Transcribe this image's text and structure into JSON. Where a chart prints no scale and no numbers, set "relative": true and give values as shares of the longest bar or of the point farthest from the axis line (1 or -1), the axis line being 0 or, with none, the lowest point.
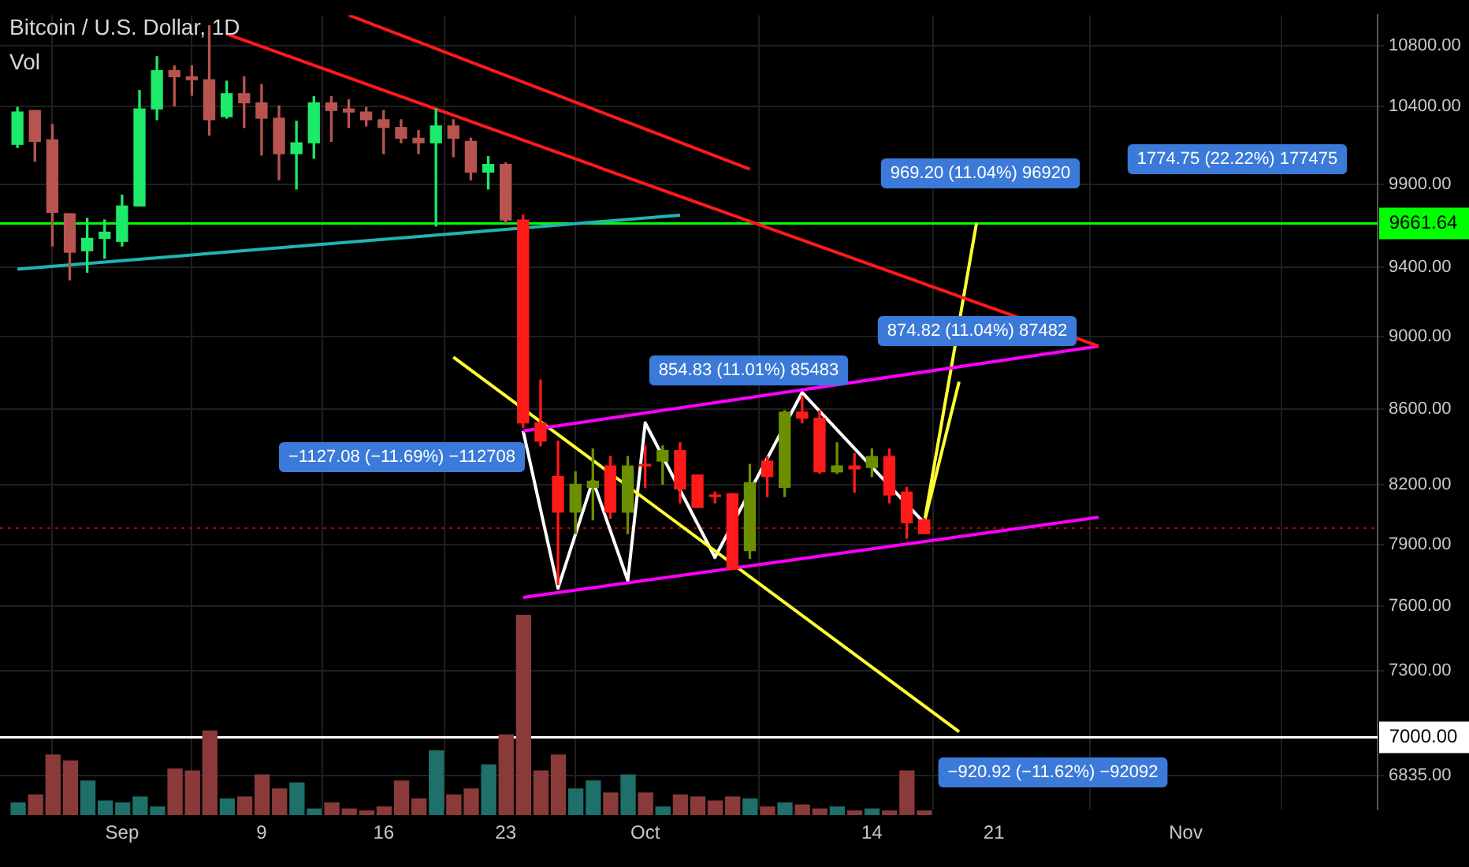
{
  "chart_data": [
    {
      "type": "candlestick",
      "title": "Bitcoin / U.S. Dollar, 1D",
      "subtitle": "Vol",
      "x": [
        "--08-26",
        "--08-27",
        "--08-28",
        "--08-29",
        "--08-30",
        "--08-31",
        "--09-01",
        "--09-02",
        "--09-03",
        "--09-04",
        "--09-05",
        "--09-06",
        "--09-07",
        "--09-08",
        "--09-09",
        "--09-10",
        "--09-11",
        "--09-12",
        "--09-13",
        "--09-14",
        "--09-15",
        "--09-16",
        "--09-17",
        "--09-18",
        "--09-19",
        "--09-20",
        "--09-21",
        "--09-22",
        "--09-23",
        "--09-24",
        "--09-25",
        "--09-26",
        "--09-27",
        "--09-28",
        "--09-29",
        "--09-30",
        "--10-01",
        "--10-02",
        "--10-03",
        "--10-04",
        "--10-05",
        "--10-06",
        "--10-07",
        "--10-08",
        "--10-09",
        "--10-10",
        "--10-11",
        "--10-12",
        "--10-13",
        "--10-14",
        "--10-15",
        "--10-16",
        "--10-17"
      ],
      "ohlc": [
        [
          10153,
          10391,
          10133,
          10361
        ],
        [
          10371,
          10371,
          10046,
          10172
        ],
        [
          10182,
          10281,
          9526,
          9730
        ],
        [
          9721,
          9721,
          9326,
          9489
        ],
        [
          9498,
          9693,
          9371,
          9572
        ],
        [
          9572,
          9683,
          9453,
          9609
        ],
        [
          9554,
          9835,
          9526,
          9768
        ],
        [
          9768,
          10502,
          9768,
          10381
        ],
        [
          10381,
          10727,
          10311,
          10634
        ],
        [
          10634,
          10665,
          10401,
          10593
        ],
        [
          10593,
          10665,
          10471,
          10573
        ],
        [
          10573,
          10937,
          10212,
          10311
        ],
        [
          10331,
          10563,
          10321,
          10481
        ],
        [
          10481,
          10593,
          10261,
          10421
        ],
        [
          10421,
          10542,
          10085,
          10321
        ],
        [
          10321,
          10401,
          9930,
          10094
        ],
        [
          10094,
          10301,
          9873,
          10163
        ],
        [
          10163,
          10461,
          10065,
          10421
        ],
        [
          10421,
          10461,
          10172,
          10371
        ],
        [
          10381,
          10441,
          10261,
          10361
        ],
        [
          10361,
          10391,
          10271,
          10311
        ],
        [
          10311,
          10371,
          10094,
          10261
        ],
        [
          10261,
          10311,
          10163,
          10192
        ],
        [
          10192,
          10241,
          10094,
          10163
        ],
        [
          10163,
          10381,
          9646,
          10271
        ],
        [
          10271,
          10311,
          10075,
          10192
        ],
        [
          10172,
          10192,
          9930,
          9978
        ],
        [
          9978,
          10075,
          9873,
          10026
        ],
        [
          10026,
          10036,
          9665,
          9683
        ],
        [
          9683,
          9712,
          8502,
          8526
        ],
        [
          8526,
          8758,
          8404,
          8429
        ],
        [
          8244,
          8429,
          7704,
          8062
        ],
        [
          8062,
          8268,
          7954,
          8204
        ],
        [
          8188,
          8388,
          8023,
          8220
        ],
        [
          8299,
          8348,
          8031,
          8062
        ],
        [
          8062,
          8348,
          7954,
          8299
        ],
        [
          8307,
          8404,
          8188,
          8299
        ],
        [
          8324,
          8404,
          8204,
          8380
        ],
        [
          8380,
          8420,
          8109,
          8180
        ],
        [
          8252,
          8252,
          8086,
          8086
        ],
        [
          8149,
          8164,
          8109,
          8141
        ],
        [
          8156,
          8156,
          7779,
          7779
        ],
        [
          7870,
          8307,
          7832,
          8212
        ],
        [
          8324,
          8348,
          8141,
          8244
        ],
        [
          8188,
          8592,
          8141,
          8584
        ],
        [
          8584,
          8672,
          8526,
          8551
        ],
        [
          8551,
          8592,
          8260,
          8268
        ],
        [
          8268,
          8420,
          8260,
          8299
        ],
        [
          8299,
          8364,
          8164,
          8283
        ],
        [
          8291,
          8388,
          8244,
          8348
        ],
        [
          8348,
          8388,
          8109,
          8149
        ],
        [
          8164,
          8188,
          7931,
          8008
        ],
        [
          8023,
          8031,
          7954,
          7954
        ]
      ],
      "colors": [
        "#1de96b",
        "#b85450",
        "#b85450",
        "#b85450",
        "#1de96b",
        "#1de96b",
        "#1de96b",
        "#1de96b",
        "#1de96b",
        "#b85450",
        "#b85450",
        "#b85450",
        "#1de96b",
        "#b85450",
        "#b85450",
        "#b85450",
        "#1de96b",
        "#1de96b",
        "#b85450",
        "#b85450",
        "#b85450",
        "#b85450",
        "#b85450",
        "#b85450",
        "#1de96b",
        "#b85450",
        "#b85450",
        "#1de96b",
        "#b85450",
        "#ff1a1a",
        "#ff1a1a",
        "#ff1a1a",
        "#6b8f00",
        "#6b8f00",
        "#ff1a1a",
        "#6b8f00",
        "#ff1a1a",
        "#6b8f00",
        "#ff1a1a",
        "#ff1a1a",
        "#ff1a1a",
        "#ff1a1a",
        "#6b8f00",
        "#ff1a1a",
        "#6b8f00",
        "#ff1a1a",
        "#ff1a1a",
        "#6b8f00",
        "#ff1a1a",
        "#6b8f00",
        "#ff1a1a",
        "#ff1a1a",
        "#ff1a1a"
      ],
      "series": [
        {
          "type": "line",
          "color": "#22b3b3",
          "x": [
            "--08-26",
            "--10-03"
          ],
          "values": [
            9389,
            9712
          ]
        },
        {
          "type": "line",
          "color": "#ff1a1a",
          "x": [
            "--09-07",
            "--10-27"
          ],
          "values": [
            10880,
            8946
          ]
        },
        {
          "type": "line",
          "color": "#ff1a1a",
          "x": [
            "--09-14",
            "--10-07"
          ],
          "values": [
            11010,
            9996
          ]
        },
        {
          "type": "line",
          "color": "#ff00ff",
          "x": [
            "--09-24",
            "--10-27"
          ],
          "values": [
            8483,
            8946
          ]
        },
        {
          "type": "line",
          "color": "#ff00ff",
          "x": [
            "--09-24",
            "--10-27"
          ],
          "values": [
            7642,
            8036
          ]
        },
        {
          "type": "line",
          "color": "#ffff33",
          "x": [
            "--09-20",
            "--10-19"
          ],
          "values": [
            8885,
            7025
          ]
        },
        {
          "type": "line",
          "color": "#ffffff",
          "x": [
            "--09-24",
            "--09-26",
            "--09-28",
            "--09-30",
            "--10-01",
            "--10-05",
            "--10-10",
            "--10-17"
          ],
          "values": [
            8483,
            7686,
            8224,
            7724,
            8526,
            7836,
            8690,
            8008
          ]
        },
        {
          "type": "line",
          "color": "#ffff33",
          "x": [
            "--10-17",
            "--10-19"
          ],
          "values": [
            8008,
            8749
          ]
        },
        {
          "type": "line",
          "color": "#ffff33",
          "x": [
            "--10-17",
            "--10-20"
          ],
          "values": [
            8008,
            9665
          ]
        }
      ],
      "xlim": [
        "--08-25",
        "--11-12"
      ],
      "xticks": [
        {
          "value": "--09-01",
          "label": "Sep"
        },
        {
          "value": "--09-09",
          "label": "9"
        },
        {
          "value": "--09-16",
          "label": "16"
        },
        {
          "value": "--09-23",
          "label": "23"
        },
        {
          "value": "--10-01",
          "label": "Oct"
        },
        {
          "value": "--10-14",
          "label": "14"
        },
        {
          "value": "--10-21",
          "label": "21"
        },
        {
          "value": "--11-01",
          "label": "Nov"
        }
      ],
      "ylim": [
        6690,
        11010
      ],
      "log": true,
      "yticks": [
        {
          "value": 6835,
          "label": "6835.00"
        },
        {
          "value": 7300,
          "label": "7300.00"
        },
        {
          "value": 7600,
          "label": "7600.00"
        },
        {
          "value": 7900,
          "label": "7900.00"
        },
        {
          "value": 8200,
          "label": "8200.00"
        },
        {
          "value": 8600,
          "label": "8600.00"
        },
        {
          "value": 9000,
          "label": "9000.00"
        },
        {
          "value": 9400,
          "label": "9400.00"
        },
        {
          "value": 9900,
          "label": "9900.00"
        },
        {
          "value": 10400,
          "label": "10400.00"
        },
        {
          "value": 10800,
          "label": "10800.00"
        }
      ],
      "grid": true,
      "ref_lines": [
        {
          "axis": "y",
          "value": 9661.64,
          "label": "9661.64",
          "color": "#00ff00"
        },
        {
          "axis": "y",
          "value": 7000,
          "label": "7000.00",
          "color": "#ffffff"
        },
        {
          "axis": "y",
          "value": 7982,
          "label": null,
          "color": "#b00000",
          "line_style": "dotted"
        }
      ],
      "annotations": [
        "969.20 (11.04%) 96920",
        "1774.75 (22.22%) 177475",
        "874.82 (11.04%) 87482",
        "854.83 (11.01%) 85483",
        "−1127.08 (−11.69%) −112708",
        "−920.92 (−11.62%) −92092"
      ]
    },
    {
      "type": "bar",
      "relative": true,
      "categories": [
        null,
        null,
        null,
        null,
        null,
        null,
        null,
        null,
        null,
        null,
        null,
        null,
        null,
        null,
        null,
        null,
        null,
        null,
        null,
        null,
        null,
        null,
        null,
        null,
        null,
        null,
        null,
        null,
        null,
        null,
        null,
        null,
        null,
        null,
        null,
        null,
        null,
        null,
        null,
        null,
        null,
        null,
        null,
        null,
        null,
        null,
        null,
        null,
        null,
        null,
        null,
        null,
        null
      ],
      "values": [
        0.06,
        0.1,
        0.3,
        0.27,
        0.17,
        0.07,
        0.06,
        0.09,
        0.04,
        0.23,
        0.22,
        0.42,
        0.08,
        0.09,
        0.2,
        0.13,
        0.16,
        0.03,
        0.06,
        0.03,
        0.02,
        0.04,
        0.17,
        0.08,
        0.32,
        0.1,
        0.13,
        0.25,
        0.4,
        1,
        0.22,
        0.3,
        0.13,
        0.17,
        0.11,
        0.2,
        0.11,
        0.04,
        0.1,
        0.09,
        0.07,
        0.09,
        0.08,
        0.04,
        0.06,
        0.05,
        0.03,
        0.04,
        0.02,
        0.03,
        0.02,
        0.22,
        0.02
      ],
      "colors": [
        "#1f6f6a",
        "#8b3a3a",
        "#8b3a3a",
        "#8b3a3a",
        "#1f6f6a",
        "#1f6f6a",
        "#1f6f6a",
        "#1f6f6a",
        "#1f6f6a",
        "#8b3a3a",
        "#8b3a3a",
        "#8b3a3a",
        "#1f6f6a",
        "#8b3a3a",
        "#8b3a3a",
        "#8b3a3a",
        "#1f6f6a",
        "#1f6f6a",
        "#8b3a3a",
        "#8b3a3a",
        "#8b3a3a",
        "#8b3a3a",
        "#8b3a3a",
        "#8b3a3a",
        "#1f6f6a",
        "#8b3a3a",
        "#8b3a3a",
        "#1f6f6a",
        "#8b3a3a",
        "#8b3a3a",
        "#8b3a3a",
        "#8b3a3a",
        "#1f6f6a",
        "#1f6f6a",
        "#8b3a3a",
        "#1f6f6a",
        "#8b3a3a",
        "#1f6f6a",
        "#8b3a3a",
        "#8b3a3a",
        "#8b3a3a",
        "#8b3a3a",
        "#1f6f6a",
        "#8b3a3a",
        "#1f6f6a",
        "#8b3a3a",
        "#8b3a3a",
        "#1f6f6a",
        "#8b3a3a",
        "#1f6f6a",
        "#8b3a3a",
        "#8b3a3a",
        "#8b3a3a"
      ]
    }
  ]
}
